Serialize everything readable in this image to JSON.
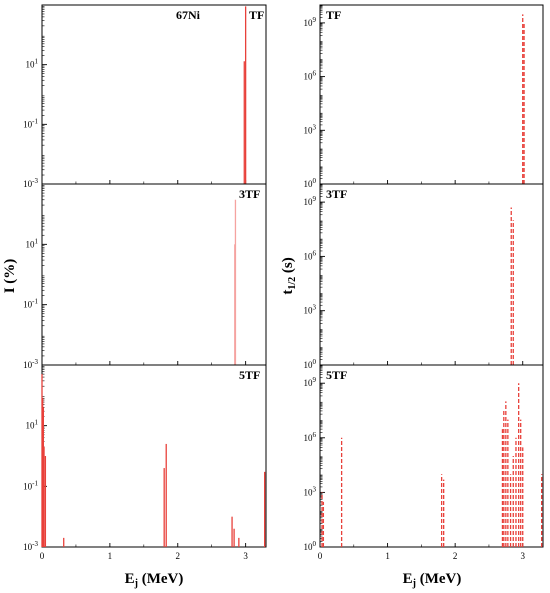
{
  "figure": {
    "left_ylabel": "I (%)",
    "right_ylabel": "t",
    "right_ylabel_sub": "1/2",
    "right_ylabel_unit": " (s)",
    "xlabel_main": "E",
    "xlabel_sub": "j",
    "xlabel_unit": " (MeV)"
  },
  "chart_data": [
    {
      "type": "bar",
      "column": "left",
      "row": 0,
      "labels": [
        "67Ni",
        "TF"
      ],
      "yscale": "log",
      "ylim": [
        0.001,
        1000
      ],
      "yticks": [
        {
          "v": 10,
          "label": "10"
        },
        {
          "v": 0.1,
          "label": "10"
        },
        {
          "v": 0.001,
          "label": "10"
        }
      ],
      "ytick_exp": [
        "1",
        "-1",
        "-3"
      ],
      "xlim": [
        0,
        3.3
      ],
      "xticks": [],
      "color": "#e8403a",
      "style": "solid",
      "x": [
        2.98,
        3.0
      ],
      "values": [
        13,
        900
      ]
    },
    {
      "type": "bar",
      "column": "left",
      "row": 1,
      "labels": [
        "3TF"
      ],
      "yscale": "log",
      "ylim": [
        0.001,
        1000
      ],
      "yticks": [
        {
          "v": 10,
          "label": "10"
        },
        {
          "v": 0.1,
          "label": "10"
        },
        {
          "v": 0.001,
          "label": "10"
        }
      ],
      "ytick_exp": [
        "1",
        "-1",
        "-3"
      ],
      "xlim": [
        0,
        3.3
      ],
      "xticks": [],
      "color": "#f5a3a0",
      "style": "solid",
      "x": [
        2.84,
        2.85
      ],
      "values": [
        10,
        300
      ]
    },
    {
      "type": "bar",
      "column": "left",
      "row": 2,
      "labels": [
        "5TF"
      ],
      "yscale": "log",
      "ylim": [
        0.001,
        1000
      ],
      "yticks": [
        {
          "v": 10,
          "label": "10"
        },
        {
          "v": 0.1,
          "label": "10"
        },
        {
          "v": 0.001,
          "label": "10"
        }
      ],
      "ytick_exp": [
        "1",
        "-1",
        "-3"
      ],
      "xlim": [
        0,
        3.3
      ],
      "xticks": [
        {
          "v": 0,
          "label": "0"
        },
        {
          "v": 1,
          "label": "1"
        },
        {
          "v": 2,
          "label": "2"
        },
        {
          "v": 3,
          "label": "3"
        }
      ],
      "color": "#e8403a",
      "style": "solid",
      "x": [
        0.0,
        0.01,
        0.02,
        0.03,
        0.05,
        0.32,
        1.8,
        1.83,
        2.8,
        2.83,
        2.9,
        3.28
      ],
      "values": [
        500,
        80,
        40,
        2,
        1,
        0.002,
        0.4,
        2.5,
        0.01,
        0.004,
        0.002,
        0.3
      ]
    },
    {
      "type": "bar",
      "column": "right",
      "row": 0,
      "labels": [
        "TF"
      ],
      "yscale": "log",
      "ylim": [
        1,
        10000000000
      ],
      "yticks": [
        {
          "v": 1000000000,
          "label": "10"
        },
        {
          "v": 1000000,
          "label": "10"
        },
        {
          "v": 1000,
          "label": "10"
        },
        {
          "v": 1,
          "label": "10"
        }
      ],
      "ytick_exp": [
        "9",
        "6",
        "3",
        "0"
      ],
      "xlim": [
        0,
        3.3
      ],
      "xticks": [],
      "color": "#e8403a",
      "style": "dashed",
      "x": [
        3.0,
        3.02
      ],
      "values": [
        3000000000,
        1000000000
      ]
    },
    {
      "type": "bar",
      "column": "right",
      "row": 1,
      "labels": [
        "3TF"
      ],
      "yscale": "log",
      "ylim": [
        1,
        10000000000
      ],
      "yticks": [
        {
          "v": 1000000000,
          "label": "10"
        },
        {
          "v": 1000000,
          "label": "10"
        },
        {
          "v": 1000,
          "label": "10"
        },
        {
          "v": 1,
          "label": "10"
        }
      ],
      "ytick_exp": [
        "9",
        "6",
        "3",
        "0"
      ],
      "xlim": [
        0,
        3.3
      ],
      "xticks": [],
      "color": "#e8403a",
      "style": "dashed",
      "x": [
        2.83,
        2.86
      ],
      "values": [
        500000000,
        100000000
      ]
    },
    {
      "type": "bar",
      "column": "right",
      "row": 2,
      "labels": [
        "5TF"
      ],
      "yscale": "log",
      "ylim": [
        1,
        10000000000
      ],
      "yticks": [
        {
          "v": 1000000000,
          "label": "10"
        },
        {
          "v": 1000000,
          "label": "10"
        },
        {
          "v": 1000,
          "label": "10"
        },
        {
          "v": 1,
          "label": "10"
        }
      ],
      "ytick_exp": [
        "9",
        "6",
        "3",
        "0"
      ],
      "xlim": [
        0,
        3.3
      ],
      "xticks": [
        {
          "v": 0,
          "label": "0"
        },
        {
          "v": 1,
          "label": "1"
        },
        {
          "v": 2,
          "label": "2"
        },
        {
          "v": 3,
          "label": "3"
        }
      ],
      "color": "#e8403a",
      "style": "dashed",
      "x": [
        0.03,
        0.05,
        0.32,
        1.8,
        1.83,
        2.7,
        2.72,
        2.75,
        2.78,
        2.82,
        2.86,
        2.9,
        2.94,
        2.97,
        3.0,
        3.28
      ],
      "values": [
        1000,
        300,
        1000000,
        10000,
        5000,
        3000000,
        30000000,
        100000000,
        10000000,
        10000,
        100000,
        1000000,
        1000000000,
        10000000,
        300000,
        10000
      ]
    }
  ]
}
